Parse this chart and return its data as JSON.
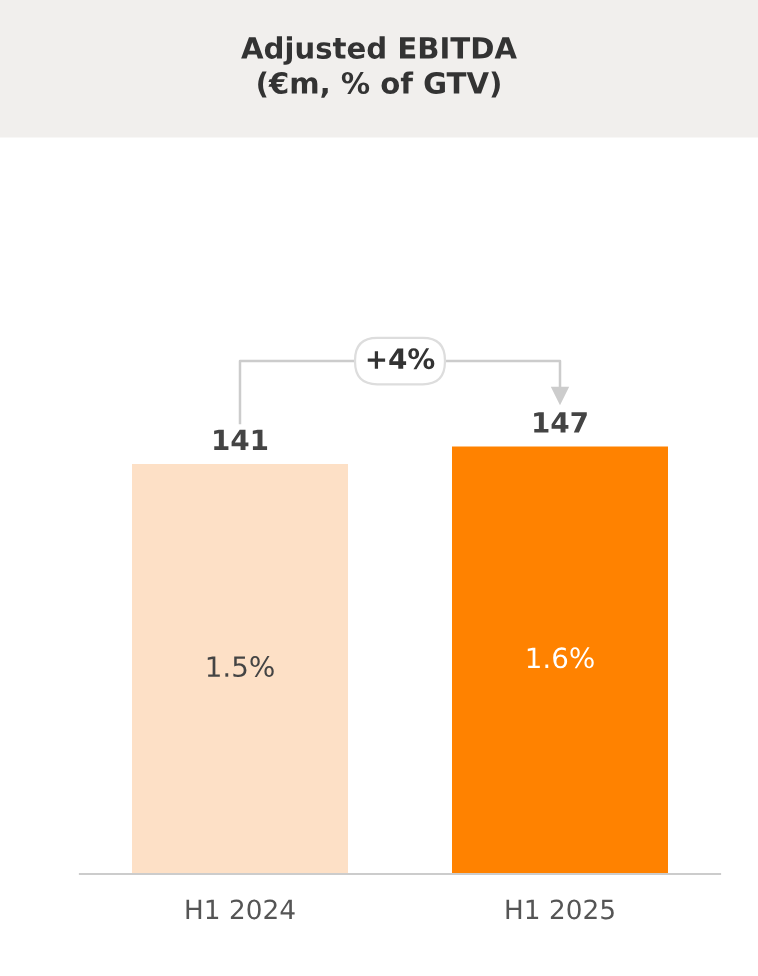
{
  "chart_data": {
    "type": "bar",
    "title": "Adjusted EBITDA\n(€m, % of GTV)",
    "categories": [
      "H1 2024",
      "H1 2025"
    ],
    "values": [
      141,
      147
    ],
    "colors": [
      "#fde0c6",
      "#ff8200"
    ],
    "data_labels": true,
    "annotations": [
      "1.5%",
      "1.6%",
      "+4%"
    ],
    "grid": false,
    "legend": false
  }
}
